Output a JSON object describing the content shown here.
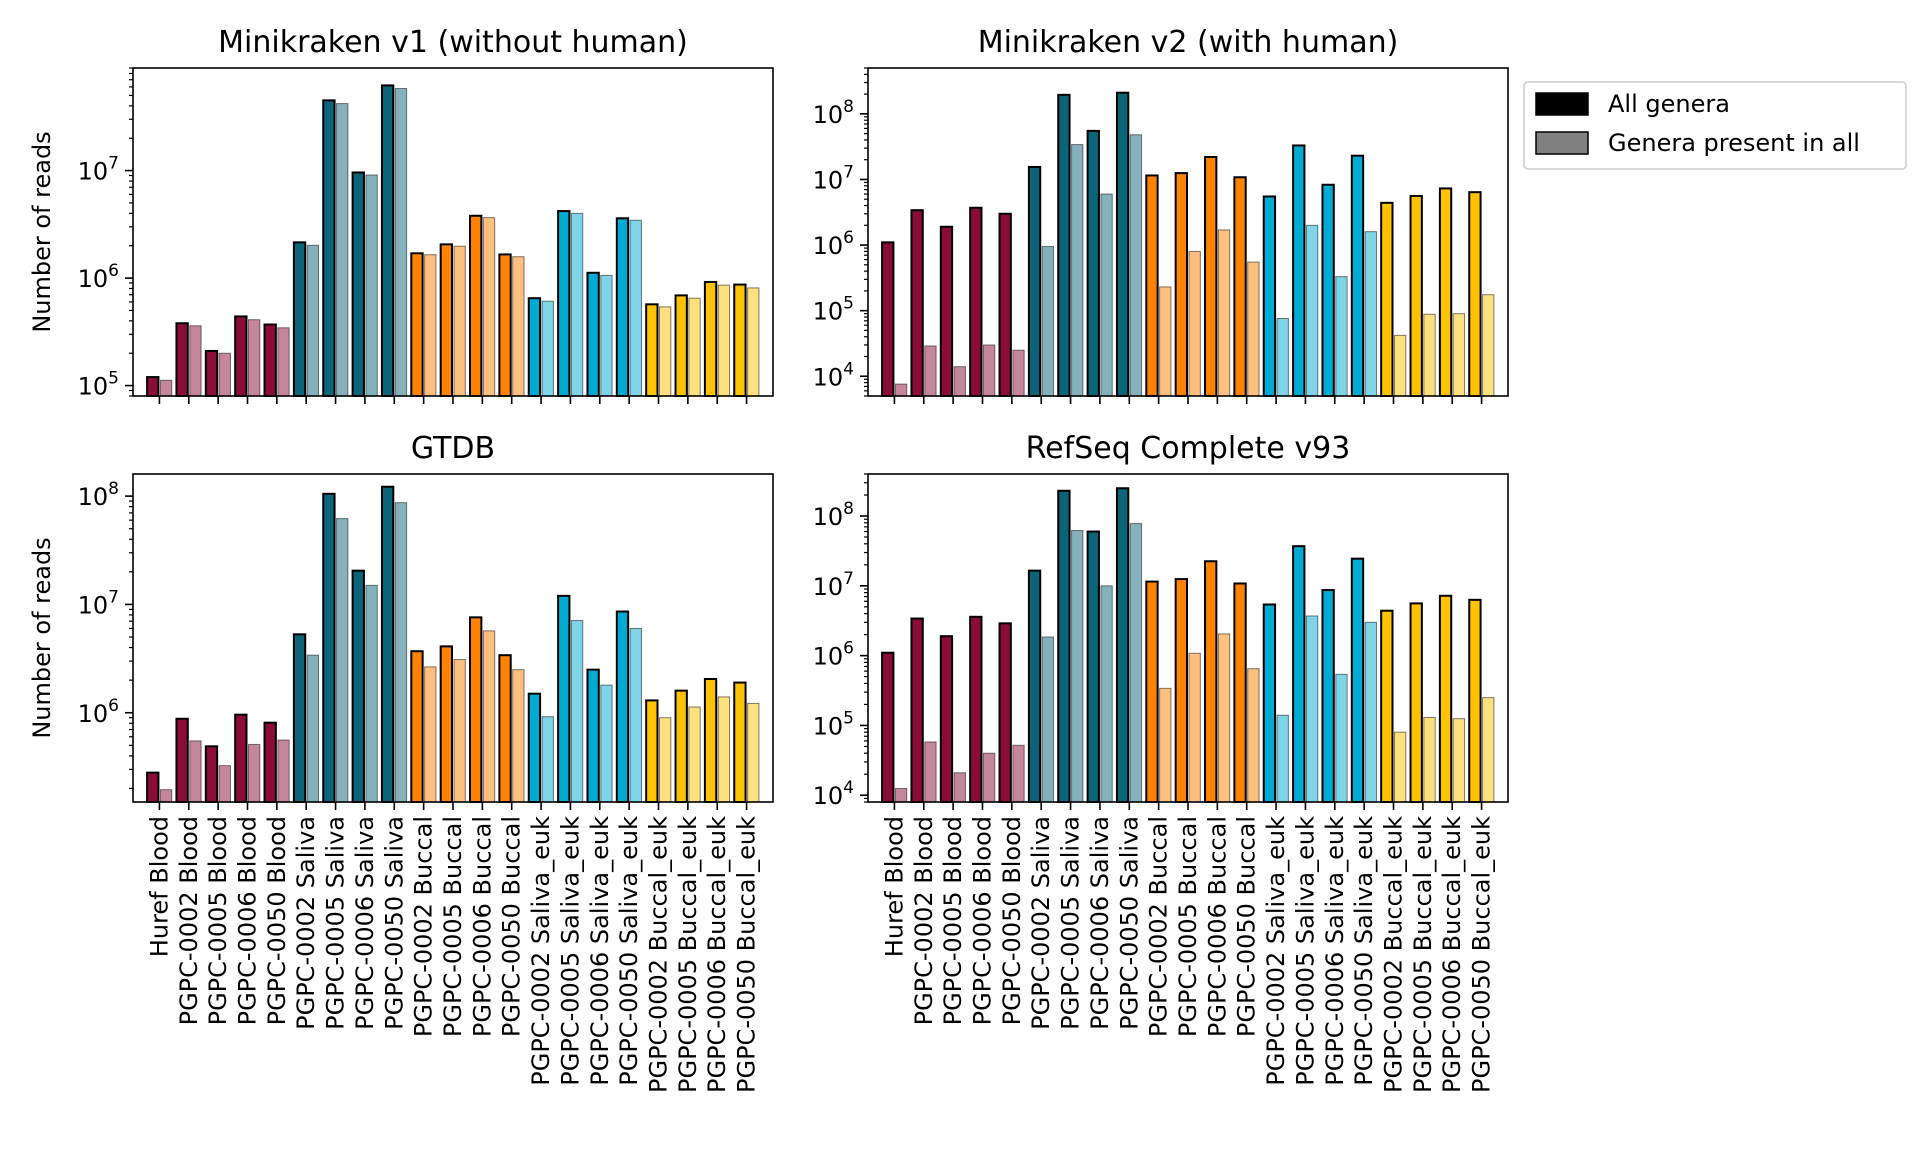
{
  "colors": {
    "blood": "#8B0D37",
    "saliva": "#0C6479",
    "buccal": "#FF8200",
    "saliva_euk": "#00AAD2",
    "buccal_euk": "#FFC200",
    "edge": "#000000"
  },
  "legend": {
    "items": [
      {
        "label": "All genera",
        "swatch": "#000000"
      },
      {
        "label": "Genera present in all",
        "swatch": "#808080"
      }
    ]
  },
  "chart_data": [
    {
      "type": "bar",
      "title": "Minikraken v1 (without human)",
      "ylabel": "Number of reads",
      "yscale": "log",
      "ylim": [
        80000,
        90000000
      ],
      "yticks": [
        {
          "v": 100000,
          "exp": "5"
        },
        {
          "v": 1000000,
          "exp": "6"
        },
        {
          "v": 10000000,
          "exp": "7"
        }
      ],
      "show_xticklabels": false,
      "series": [
        {
          "name": "All genera",
          "values": [
            120000,
            380000,
            210000,
            440000,
            370000,
            2150000,
            45000000,
            9600000,
            62000000,
            1700000,
            2060000,
            3800000,
            1660000,
            650000,
            4200000,
            1120000,
            3600000,
            570000,
            690000,
            920000,
            870000
          ]
        },
        {
          "name": "Genera present in all",
          "values": [
            112000,
            360000,
            200000,
            410000,
            345000,
            2020000,
            42000000,
            9100000,
            58000000,
            1650000,
            1980000,
            3650000,
            1580000,
            610000,
            4000000,
            1060000,
            3450000,
            540000,
            650000,
            860000,
            810000
          ]
        }
      ]
    },
    {
      "type": "bar",
      "title": "Minikraken v2 (with human)",
      "ylabel": "",
      "yscale": "log",
      "ylim": [
        5000,
        500000000
      ],
      "yticks": [
        {
          "v": 10000,
          "exp": "4"
        },
        {
          "v": 100000,
          "exp": "5"
        },
        {
          "v": 1000000,
          "exp": "6"
        },
        {
          "v": 10000000,
          "exp": "7"
        },
        {
          "v": 100000000,
          "exp": "8"
        }
      ],
      "show_xticklabels": false,
      "series": [
        {
          "name": "All genera",
          "values": [
            1100000,
            3400000,
            1900000,
            3700000,
            3000000,
            15500000,
            195000000,
            55000000,
            210000000,
            11500000,
            12500000,
            22000000,
            10800000,
            5500000,
            33000000,
            8300000,
            23000000,
            4400000,
            5600000,
            7300000,
            6400000
          ]
        },
        {
          "name": "Genera present in all",
          "values": [
            7600,
            29000,
            14000,
            30000,
            25000,
            950000,
            34000000,
            6000000,
            48000000,
            230000,
            800000,
            1700000,
            550000,
            76000,
            2000000,
            330000,
            1600000,
            42000,
            88000,
            90000,
            175000
          ]
        }
      ]
    },
    {
      "type": "bar",
      "title": "GTDB",
      "ylabel": "Number of reads",
      "yscale": "log",
      "ylim": [
        150000,
        160000000
      ],
      "yticks": [
        {
          "v": 1000000,
          "exp": "6"
        },
        {
          "v": 10000000,
          "exp": "7"
        },
        {
          "v": 100000000,
          "exp": "8"
        }
      ],
      "show_xticklabels": true,
      "series": [
        {
          "name": "All genera",
          "values": [
            280000,
            880000,
            490000,
            960000,
            810000,
            5300000,
            105000000,
            20500000,
            122000000,
            3700000,
            4100000,
            7600000,
            3400000,
            1500000,
            12000000,
            2500000,
            8600000,
            1300000,
            1600000,
            2050000,
            1900000
          ]
        },
        {
          "name": "Genera present in all",
          "values": [
            195000,
            550000,
            325000,
            510000,
            560000,
            3400000,
            62000000,
            15000000,
            87000000,
            2650000,
            3100000,
            5700000,
            2500000,
            920000,
            7100000,
            1800000,
            6000000,
            900000,
            1130000,
            1400000,
            1220000
          ]
        }
      ]
    },
    {
      "type": "bar",
      "title": "RefSeq Complete v93",
      "ylabel": "",
      "yscale": "log",
      "ylim": [
        8000,
        400000000
      ],
      "yticks": [
        {
          "v": 10000,
          "exp": "4"
        },
        {
          "v": 100000,
          "exp": "5"
        },
        {
          "v": 1000000,
          "exp": "6"
        },
        {
          "v": 10000000,
          "exp": "7"
        },
        {
          "v": 100000000,
          "exp": "8"
        }
      ],
      "show_xticklabels": true,
      "series": [
        {
          "name": "All genera",
          "values": [
            1100000,
            3400000,
            1900000,
            3600000,
            2900000,
            16500000,
            230000000,
            60000000,
            250000000,
            11500000,
            12500000,
            22500000,
            10800000,
            5400000,
            37000000,
            8700000,
            24500000,
            4400000,
            5600000,
            7200000,
            6300000
          ]
        },
        {
          "name": "Genera present in all",
          "values": [
            12500,
            58000,
            21000,
            40000,
            52000,
            1850000,
            62000000,
            10000000,
            78000000,
            340000,
            1080000,
            2050000,
            650000,
            140000,
            3700000,
            540000,
            3000000,
            80000,
            130000,
            125000,
            250000
          ]
        }
      ]
    }
  ],
  "categories": [
    "Huref Blood",
    "PGPC-0002 Blood",
    "PGPC-0005 Blood",
    "PGPC-0006 Blood",
    "PGPC-0050 Blood",
    "PGPC-0002 Saliva",
    "PGPC-0005 Saliva",
    "PGPC-0006 Saliva",
    "PGPC-0050 Saliva",
    "PGPC-0002 Buccal",
    "PGPC-0005 Buccal",
    "PGPC-0006 Buccal",
    "PGPC-0050 Buccal",
    "PGPC-0002 Saliva_euk",
    "PGPC-0005 Saliva_euk",
    "PGPC-0006 Saliva_euk",
    "PGPC-0050 Saliva_euk",
    "PGPC-0002 Buccal_euk",
    "PGPC-0005 Buccal_euk",
    "PGPC-0006 Buccal_euk",
    "PGPC-0050 Buccal_euk"
  ],
  "category_groups": [
    "blood",
    "blood",
    "blood",
    "blood",
    "blood",
    "saliva",
    "saliva",
    "saliva",
    "saliva",
    "buccal",
    "buccal",
    "buccal",
    "buccal",
    "saliva_euk",
    "saliva_euk",
    "saliva_euk",
    "saliva_euk",
    "buccal_euk",
    "buccal_euk",
    "buccal_euk",
    "buccal_euk"
  ],
  "tick_base": "10"
}
